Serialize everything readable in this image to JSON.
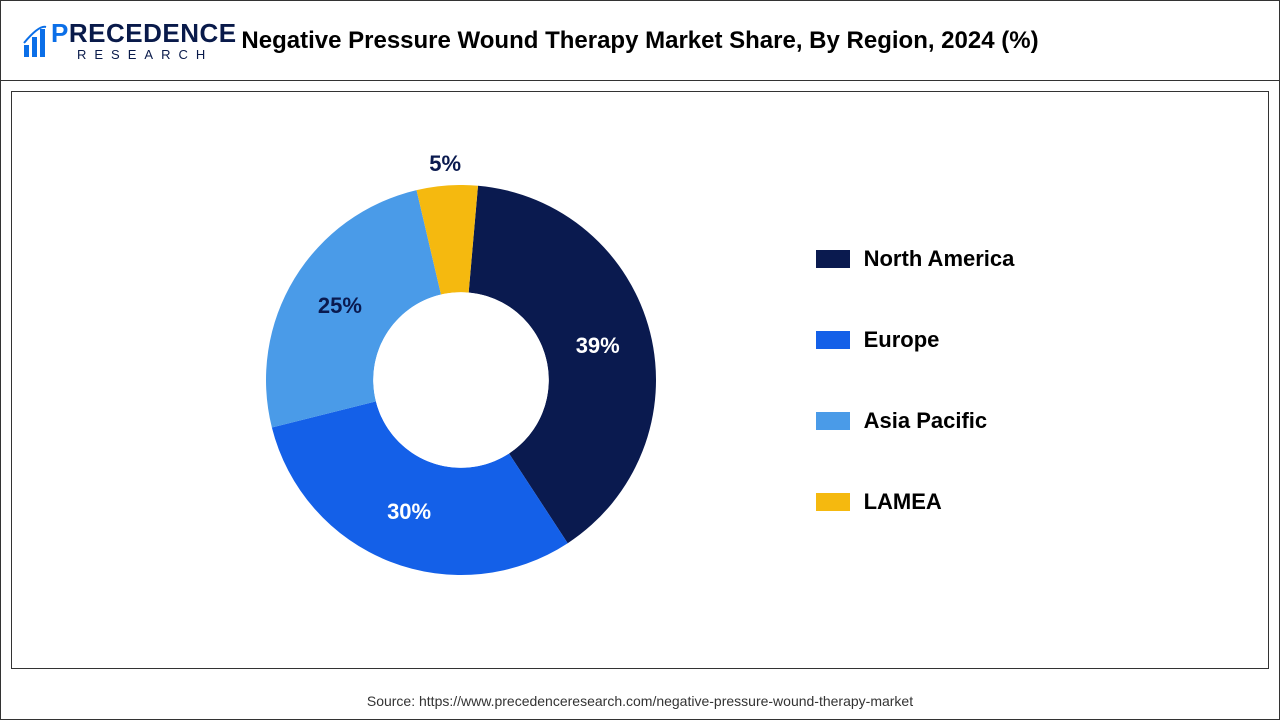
{
  "logo": {
    "main_p": "P",
    "main_rest": "RECEDENCE",
    "sub": "RESEARCH",
    "accent_color": "#0b6fe8",
    "text_color": "#091a4a"
  },
  "title": "Negative Pressure Wound Therapy Market Share, By Region, 2024 (%)",
  "title_fontsize": 24,
  "chart": {
    "type": "donut",
    "inner_radius_pct": 45,
    "outer_radius_pct": 100,
    "start_angle_deg": 5,
    "slices": [
      {
        "label": "North America",
        "value": 39,
        "display": "39%",
        "color": "#0a1a4f",
        "label_color": "#ffffff"
      },
      {
        "label": "Europe",
        "value": 30,
        "display": "30%",
        "color": "#1460e8",
        "label_color": "#ffffff"
      },
      {
        "label": "Asia Pacific",
        "value": 25,
        "display": "25%",
        "color": "#4a9be8",
        "label_color": "#0a1a4f"
      },
      {
        "label": "LAMEA",
        "value": 5,
        "display": "5%",
        "color": "#f5b90f",
        "label_color": "#0a1a4f",
        "label_outside": true
      }
    ],
    "background_color": "#ffffff",
    "label_fontsize": 22
  },
  "legend": {
    "position": "right",
    "items": [
      {
        "label": "North America",
        "color": "#0a1a4f"
      },
      {
        "label": "Europe",
        "color": "#1460e8"
      },
      {
        "label": "Asia Pacific",
        "color": "#4a9be8"
      },
      {
        "label": "LAMEA",
        "color": "#f5b90f"
      }
    ],
    "fontsize": 22
  },
  "source": "Source: https://www.precedenceresearch.com/negative-pressure-wound-therapy-market",
  "source_fontsize": 14
}
